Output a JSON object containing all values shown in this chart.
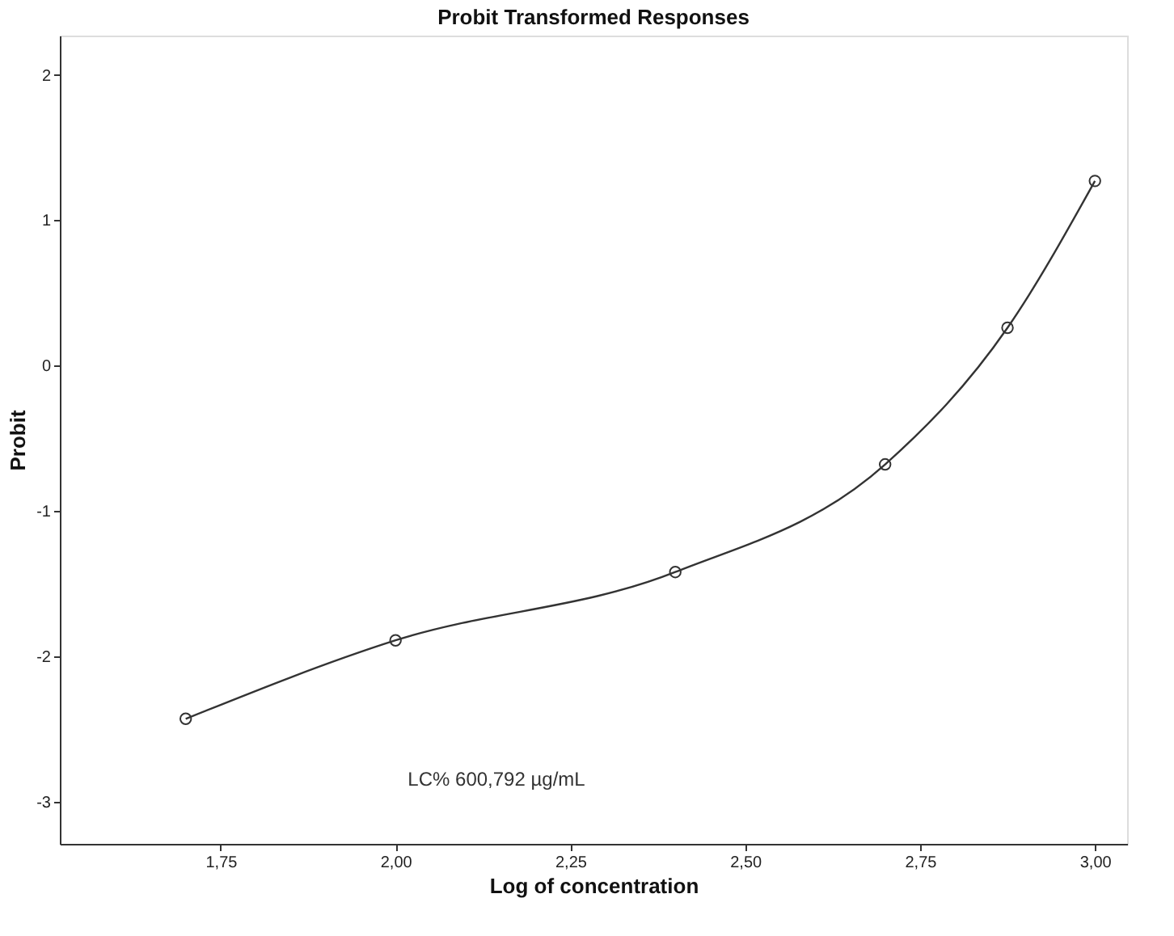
{
  "chart_data": {
    "type": "line",
    "title": "Probit Transformed Responses",
    "xlabel": "Log of concentration",
    "ylabel": "Probit",
    "x": [
      1.7,
      2.0,
      2.4,
      2.7,
      2.875,
      3.0
    ],
    "series": [
      {
        "color": "#333333",
        "values": [
          -2.43,
          -1.89,
          -1.42,
          -0.68,
          0.26,
          1.27
        ]
      }
    ],
    "marker": "circle",
    "line_style": "solid",
    "grid": false,
    "xlim": [
      1.52,
      3.046
    ],
    "ylim": [
      -3.29,
      2.27
    ],
    "xticks": [
      {
        "value": 1.75,
        "label": "1,75"
      },
      {
        "value": 2.0,
        "label": "2,00"
      },
      {
        "value": 2.25,
        "label": "2,25"
      },
      {
        "value": 2.5,
        "label": "2,50"
      },
      {
        "value": 2.75,
        "label": "2,75"
      },
      {
        "value": 3.0,
        "label": "3,00"
      }
    ],
    "yticks": [
      -3,
      -2,
      -1,
      0,
      1,
      2
    ],
    "annotations": [
      "LC% 600,792 µg/mL"
    ]
  }
}
